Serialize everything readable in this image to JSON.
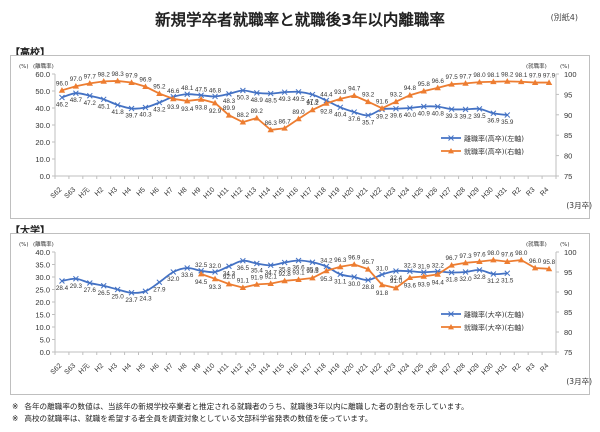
{
  "header": {
    "title": "新規学卒者就職率と就職後3年以内離職率",
    "appendix_tag": "(別紙4)"
  },
  "colors": {
    "separation_line": "#4472c4",
    "employment_line": "#ed7d31",
    "axis": "#bfbfbf",
    "text": "#333333"
  },
  "chart_data": [
    {
      "id": "high_school",
      "section_label": "【高校】",
      "type": "line",
      "left_axis_unit": "(%)",
      "left_axis_name": "(離職率)",
      "right_axis_name": "(就職率)",
      "right_axis_unit": "(%)",
      "x_note": "(3月卒)",
      "categories": [
        "S62",
        "S63",
        "H元",
        "H2",
        "H3",
        "H4",
        "H5",
        "H6",
        "H7",
        "H8",
        "H9",
        "H10",
        "H11",
        "H12",
        "H13",
        "H14",
        "H15",
        "H16",
        "H17",
        "H18",
        "H19",
        "H20",
        "H21",
        "H22",
        "H23",
        "H24",
        "H25",
        "H26",
        "H27",
        "H28",
        "H29",
        "H30",
        "H31",
        "R2",
        "R3",
        "R4"
      ],
      "ylim_left": [
        0,
        60
      ],
      "yticks_left": [
        "0.0",
        "10.0",
        "20.0",
        "30.0",
        "40.0",
        "50.0",
        "60.0"
      ],
      "ylim_right": [
        75,
        100
      ],
      "yticks_right": [
        "75",
        "80",
        "85",
        "90",
        "95",
        "100"
      ],
      "series": [
        {
          "name": "離職率(高卒)(左軸)",
          "axis": "left",
          "marker": "x",
          "start_index": 0,
          "values": [
            46.2,
            48.7,
            47.2,
            45.1,
            41.8,
            39.7,
            40.3,
            43.2,
            46.6,
            48.1,
            47.5,
            46.8,
            48.3,
            50.3,
            48.9,
            48.5,
            49.3,
            49.5,
            47.9,
            44.4,
            40.4,
            37.6,
            35.7,
            39.2,
            39.6,
            40.0,
            40.9,
            40.8,
            39.3,
            39.2,
            39.5,
            36.9,
            35.9
          ]
        },
        {
          "name": "就職率(高卒)(右軸)",
          "axis": "right",
          "marker": "triangle",
          "start_index": 0,
          "values": [
            96.0,
            97.0,
            97.7,
            98.2,
            98.3,
            97.9,
            96.9,
            95.2,
            93.9,
            93.4,
            93.8,
            92.9,
            89.9,
            88.2,
            89.2,
            86.3,
            86.7,
            89.0,
            91.2,
            92.8,
            93.9,
            94.7,
            93.2,
            91.6,
            93.2,
            94.8,
            95.8,
            96.6,
            97.5,
            97.7,
            98.0,
            98.1,
            98.2,
            98.1,
            97.9,
            97.9
          ]
        }
      ],
      "grid": false,
      "legend_position": "right-middle"
    },
    {
      "id": "university",
      "section_label": "【大学】",
      "type": "line",
      "left_axis_unit": "(%)",
      "left_axis_name": "(離職率)",
      "right_axis_name": "(就職率)",
      "right_axis_unit": "(%)",
      "x_note": "(3月卒)",
      "categories": [
        "S62",
        "S63",
        "H元",
        "H2",
        "H3",
        "H4",
        "H5",
        "H6",
        "H7",
        "H8",
        "H9",
        "H10",
        "H11",
        "H12",
        "H13",
        "H14",
        "H15",
        "H16",
        "H17",
        "H18",
        "H19",
        "H20",
        "H21",
        "H22",
        "H23",
        "H24",
        "H25",
        "H26",
        "H27",
        "H28",
        "H29",
        "H30",
        "H31",
        "R2",
        "R3",
        "R4"
      ],
      "ylim_left": [
        0,
        40
      ],
      "yticks_left": [
        "0.0",
        "5.0",
        "10.0",
        "15.0",
        "20.0",
        "25.0",
        "30.0",
        "35.0",
        "40.0"
      ],
      "ylim_right": [
        75,
        100
      ],
      "yticks_right": [
        "75",
        "80",
        "85",
        "90",
        "95",
        "100"
      ],
      "series": [
        {
          "name": "離職率(大卒)(左軸)",
          "axis": "left",
          "marker": "x",
          "start_index": 0,
          "values": [
            28.4,
            29.3,
            27.6,
            26.5,
            25.0,
            23.7,
            24.3,
            27.9,
            32.0,
            33.6,
            32.5,
            32.0,
            34.3,
            36.5,
            35.4,
            34.7,
            35.8,
            36.6,
            35.9,
            34.2,
            31.1,
            30.0,
            28.8,
            31.0,
            32.4,
            32.3,
            31.9,
            32.2,
            31.8,
            32.0,
            32.8,
            31.2,
            31.5
          ]
        },
        {
          "name": "就職率(大卒)(右軸)",
          "axis": "right",
          "marker": "triangle",
          "start_index": 10,
          "values": [
            94.5,
            93.3,
            92.0,
            91.1,
            91.9,
            92.1,
            92.8,
            93.1,
            93.5,
            95.3,
            96.3,
            96.9,
            95.7,
            91.8,
            91.0,
            93.6,
            93.9,
            94.4,
            96.7,
            97.3,
            97.6,
            98.0,
            97.6,
            98.0,
            96.0,
            95.8
          ]
        }
      ],
      "grid": false,
      "legend_position": "right-middle"
    }
  ],
  "footnotes": [
    {
      "mark": "※",
      "text": "各年の離職率の数値は、当該年の新規学校卒業者と推定される就職者のうち、就職後3年以内に離職した者の割合を示しています。"
    },
    {
      "mark": "※",
      "text": "高校の就職率は、就職を希望する者全員を調査対象としている文部科学省発表の数値を使っています。"
    }
  ]
}
